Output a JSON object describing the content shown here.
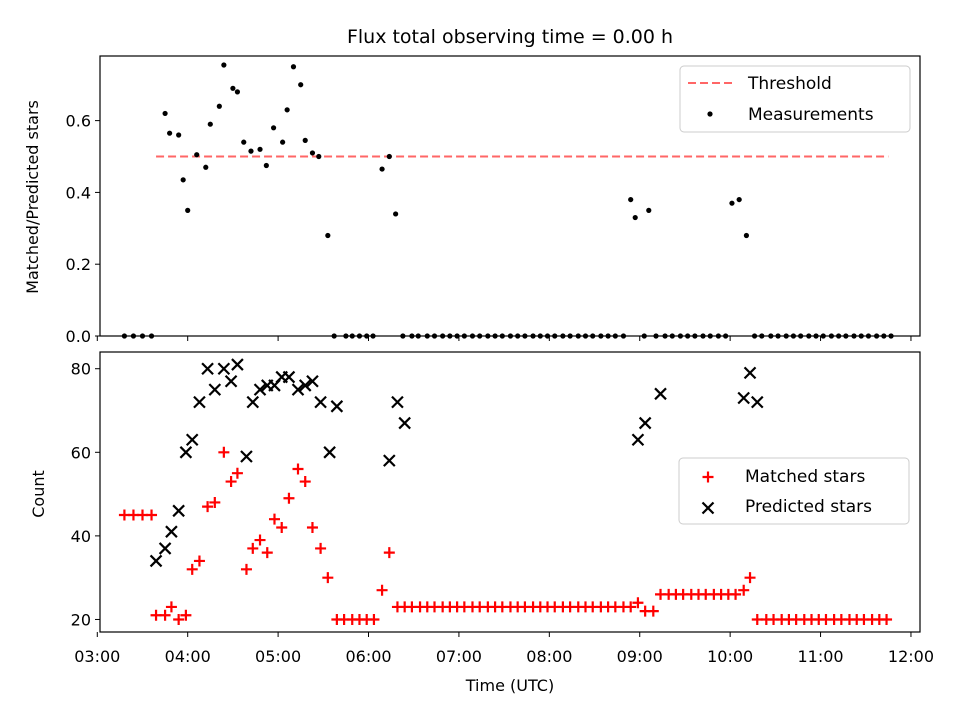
{
  "chart_data": [
    {
      "type": "scatter",
      "title": "Flux total observing time = 0.00 h",
      "ylabel": "Matched/Predicted stars",
      "xlabel": "",
      "ylim": [
        0,
        0.78
      ],
      "yticks": [
        "0.0",
        "0.2",
        "0.4",
        "0.6"
      ],
      "legend_position": "top-right",
      "threshold": {
        "name": "Threshold",
        "y": 0.5,
        "x_range": [
          3.65,
          11.75
        ],
        "color": "#ff6666"
      },
      "series": [
        {
          "name": "Measurements",
          "color": "#000000",
          "marker": "dot",
          "x": [
            3.3,
            3.4,
            3.5,
            3.6,
            3.75,
            3.8,
            3.9,
            3.95,
            4.0,
            4.1,
            4.2,
            4.25,
            4.35,
            4.4,
            4.5,
            4.55,
            4.62,
            4.7,
            4.8,
            4.87,
            4.95,
            5.05,
            5.1,
            5.17,
            5.25,
            5.3,
            5.38,
            5.45,
            5.55,
            5.62,
            5.75,
            5.82,
            5.9,
            5.98,
            6.05,
            6.15,
            6.23,
            6.3,
            6.38,
            6.48,
            6.55,
            6.65,
            6.73,
            6.82,
            6.9,
            6.98,
            7.06,
            7.15,
            7.23,
            7.32,
            7.4,
            7.48,
            7.57,
            7.65,
            7.73,
            7.82,
            7.9,
            7.98,
            8.06,
            8.15,
            8.23,
            8.32,
            8.4,
            8.48,
            8.57,
            8.65,
            8.73,
            8.82,
            8.9,
            8.95,
            9.05,
            9.1,
            9.18,
            9.28,
            9.36,
            9.45,
            9.53,
            9.61,
            9.7,
            9.78,
            9.87,
            9.95,
            10.02,
            10.1,
            10.18,
            10.27,
            10.35,
            10.45,
            10.53,
            10.62,
            10.7,
            10.78,
            10.87,
            10.95,
            11.03,
            11.12,
            11.2,
            11.28,
            11.37,
            11.45,
            11.53,
            11.62,
            11.7,
            11.78
          ],
          "y": [
            0,
            0,
            0,
            0,
            0.62,
            0.565,
            0.56,
            0.435,
            0.35,
            0.505,
            0.47,
            0.59,
            0.64,
            0.755,
            0.69,
            0.68,
            0.54,
            0.515,
            0.52,
            0.475,
            0.58,
            0.54,
            0.63,
            0.75,
            0.7,
            0.545,
            0.51,
            0.5,
            0.28,
            0,
            0,
            0,
            0,
            0,
            0,
            0.465,
            0.5,
            0.34,
            0,
            0,
            0,
            0,
            0,
            0,
            0,
            0,
            0,
            0,
            0,
            0,
            0,
            0,
            0,
            0,
            0,
            0,
            0,
            0,
            0,
            0,
            0,
            0,
            0,
            0,
            0,
            0,
            0,
            0,
            0.38,
            0.33,
            0,
            0.35,
            0,
            0,
            0,
            0,
            0,
            0,
            0,
            0,
            0,
            0,
            0.37,
            0.38,
            0.28,
            0,
            0,
            0,
            0,
            0,
            0,
            0,
            0,
            0,
            0,
            0,
            0,
            0,
            0,
            0,
            0,
            0,
            0,
            0
          ]
        }
      ]
    },
    {
      "type": "scatter",
      "title": "",
      "xlabel": "Time (UTC)",
      "ylabel": "Count",
      "ylim": [
        17,
        84
      ],
      "yticks": [
        "20",
        "40",
        "60",
        "80"
      ],
      "xlim": [
        3.03,
        12.1
      ],
      "xticks": [
        "03:00",
        "04:00",
        "05:00",
        "06:00",
        "07:00",
        "08:00",
        "09:00",
        "10:00",
        "11:00",
        "12:00"
      ],
      "legend_position": "center-right",
      "series": [
        {
          "name": "Matched stars",
          "color": "#ff0000",
          "marker": "plus",
          "x": [
            3.3,
            3.4,
            3.5,
            3.6,
            3.65,
            3.75,
            3.82,
            3.9,
            3.98,
            4.05,
            4.13,
            4.22,
            4.3,
            4.4,
            4.48,
            4.55,
            4.65,
            4.72,
            4.8,
            4.88,
            4.96,
            5.04,
            5.12,
            5.22,
            5.3,
            5.38,
            5.47,
            5.55,
            5.65,
            5.73,
            5.82,
            5.9,
            5.98,
            6.06,
            6.15,
            6.23,
            6.32,
            6.4,
            6.48,
            6.57,
            6.65,
            6.73,
            6.82,
            6.9,
            6.98,
            7.06,
            7.15,
            7.23,
            7.32,
            7.4,
            7.48,
            7.57,
            7.65,
            7.73,
            7.82,
            7.9,
            7.98,
            8.06,
            8.15,
            8.23,
            8.32,
            8.4,
            8.48,
            8.57,
            8.65,
            8.73,
            8.82,
            8.9,
            8.98,
            9.06,
            9.15,
            9.23,
            9.32,
            9.4,
            9.48,
            9.57,
            9.65,
            9.73,
            9.82,
            9.9,
            9.98,
            10.06,
            10.15,
            10.22,
            10.3,
            10.4,
            10.48,
            10.57,
            10.65,
            10.73,
            10.82,
            10.9,
            10.98,
            11.06,
            11.15,
            11.23,
            11.32,
            11.4,
            11.48,
            11.57,
            11.65,
            11.73
          ],
          "y": [
            45,
            45,
            45,
            45,
            21,
            21,
            23,
            20,
            21,
            32,
            34,
            47,
            48,
            60,
            53,
            55,
            32,
            37,
            39,
            36,
            44,
            42,
            49,
            56,
            53,
            42,
            37,
            30,
            20,
            20,
            20,
            20,
            20,
            20,
            27,
            36,
            23,
            23,
            23,
            23,
            23,
            23,
            23,
            23,
            23,
            23,
            23,
            23,
            23,
            23,
            23,
            23,
            23,
            23,
            23,
            23,
            23,
            23,
            23,
            23,
            23,
            23,
            23,
            23,
            23,
            23,
            23,
            23,
            24,
            22,
            22,
            26,
            26,
            26,
            26,
            26,
            26,
            26,
            26,
            26,
            26,
            26,
            27,
            30,
            20,
            20,
            20,
            20,
            20,
            20,
            20,
            20,
            20,
            20,
            20,
            20,
            20,
            20,
            20,
            20,
            20,
            20
          ]
        },
        {
          "name": "Predicted stars",
          "color": "#000000",
          "marker": "x",
          "x": [
            3.65,
            3.75,
            3.82,
            3.9,
            3.98,
            4.05,
            4.13,
            4.22,
            4.3,
            4.4,
            4.48,
            4.55,
            4.65,
            4.72,
            4.8,
            4.88,
            4.96,
            5.04,
            5.12,
            5.22,
            5.3,
            5.38,
            5.47,
            5.57,
            5.65,
            6.23,
            6.32,
            6.4,
            8.98,
            9.06,
            9.23,
            10.15,
            10.22,
            10.3
          ],
          "y": [
            34,
            37,
            41,
            46,
            60,
            63,
            72,
            80,
            75,
            80,
            77,
            81,
            59,
            72,
            75,
            76,
            76,
            78,
            78,
            75,
            76,
            77,
            72,
            60,
            71,
            58,
            72,
            67,
            63,
            67,
            74,
            73,
            79,
            72
          ]
        }
      ]
    }
  ]
}
